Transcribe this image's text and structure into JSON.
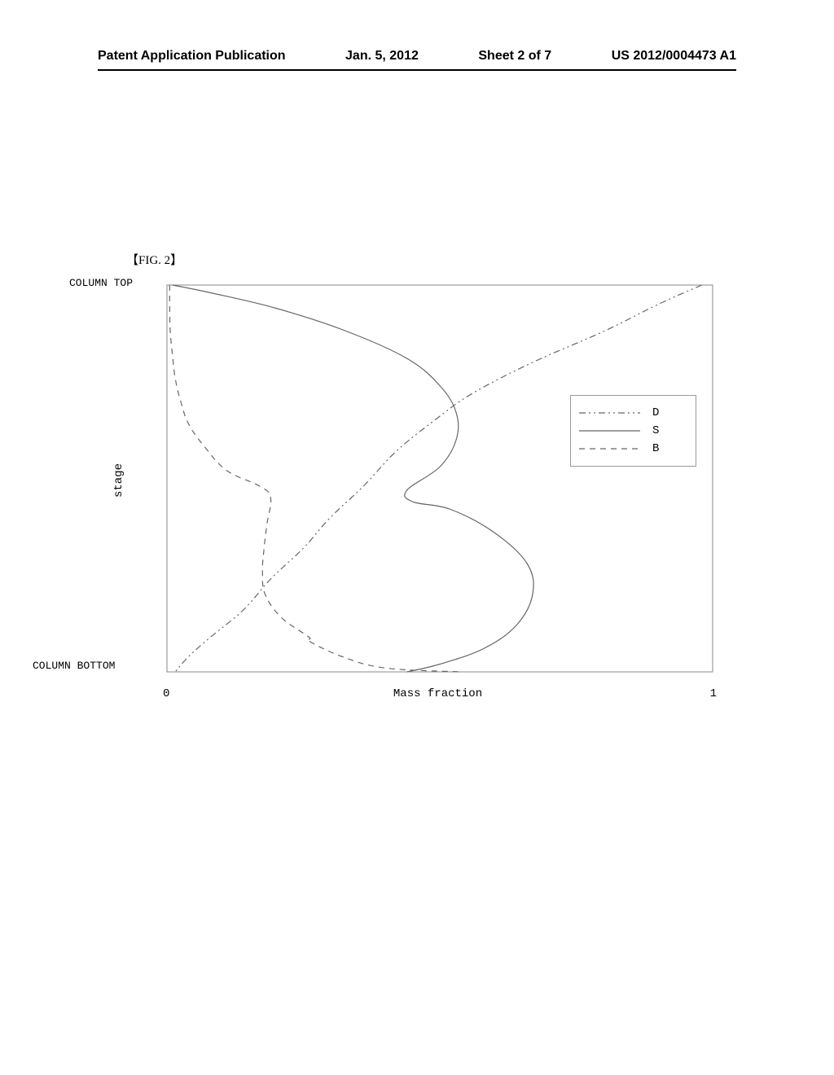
{
  "header": {
    "pub_type": "Patent Application Publication",
    "date": "Jan. 5, 2012",
    "sheet": "Sheet 2 of 7",
    "pub_number": "US 2012/0004473 A1"
  },
  "figure": {
    "label": "【FIG. 2】",
    "type": "line",
    "y_axis_title": "stage",
    "y_axis_top": "COLUMN TOP",
    "y_axis_bottom": "COLUMN BOTTOM",
    "x_axis_title": "Mass fraction",
    "x_tick_min": "0",
    "x_tick_max": "1",
    "background_color": "#ffffff",
    "border_color": "#888888",
    "curve_color": "#666666",
    "curve_width": 1.2,
    "series": {
      "D": {
        "label": "D",
        "dash": "8,4,2,4,2,4",
        "points": [
          [
            0.98,
            0.0
          ],
          [
            0.9,
            0.05
          ],
          [
            0.8,
            0.12
          ],
          [
            0.67,
            0.2
          ],
          [
            0.56,
            0.28
          ],
          [
            0.49,
            0.35
          ],
          [
            0.42,
            0.43
          ],
          [
            0.36,
            0.52
          ],
          [
            0.3,
            0.6
          ],
          [
            0.25,
            0.68
          ],
          [
            0.19,
            0.76
          ],
          [
            0.14,
            0.84
          ],
          [
            0.08,
            0.91
          ],
          [
            0.04,
            0.96
          ],
          [
            0.015,
            1.0
          ]
        ]
      },
      "S": {
        "label": "S",
        "dash": "none",
        "points": [
          [
            0.01,
            0.0
          ],
          [
            0.08,
            0.02
          ],
          [
            0.2,
            0.06
          ],
          [
            0.33,
            0.12
          ],
          [
            0.44,
            0.19
          ],
          [
            0.5,
            0.26
          ],
          [
            0.53,
            0.33
          ],
          [
            0.53,
            0.4
          ],
          [
            0.5,
            0.47
          ],
          [
            0.44,
            0.53
          ],
          [
            0.45,
            0.56
          ],
          [
            0.52,
            0.58
          ],
          [
            0.6,
            0.64
          ],
          [
            0.66,
            0.72
          ],
          [
            0.67,
            0.8
          ],
          [
            0.64,
            0.88
          ],
          [
            0.58,
            0.94
          ],
          [
            0.5,
            0.98
          ],
          [
            0.44,
            1.0
          ]
        ]
      },
      "B": {
        "label": "B",
        "dash": "7,6",
        "points": [
          [
            0.005,
            0.0
          ],
          [
            0.005,
            0.06
          ],
          [
            0.006,
            0.12
          ],
          [
            0.01,
            0.18
          ],
          [
            0.015,
            0.24
          ],
          [
            0.025,
            0.3
          ],
          [
            0.04,
            0.36
          ],
          [
            0.07,
            0.42
          ],
          [
            0.11,
            0.48
          ],
          [
            0.17,
            0.52
          ],
          [
            0.19,
            0.55
          ],
          [
            0.183,
            0.62
          ],
          [
            0.178,
            0.68
          ],
          [
            0.175,
            0.74
          ],
          [
            0.18,
            0.8
          ],
          [
            0.21,
            0.86
          ],
          [
            0.26,
            0.91
          ],
          [
            0.26,
            0.92
          ],
          [
            0.32,
            0.96
          ],
          [
            0.4,
            0.99
          ],
          [
            0.54,
            1.0
          ]
        ]
      }
    },
    "legend_items": [
      "D",
      "S",
      "B"
    ]
  }
}
